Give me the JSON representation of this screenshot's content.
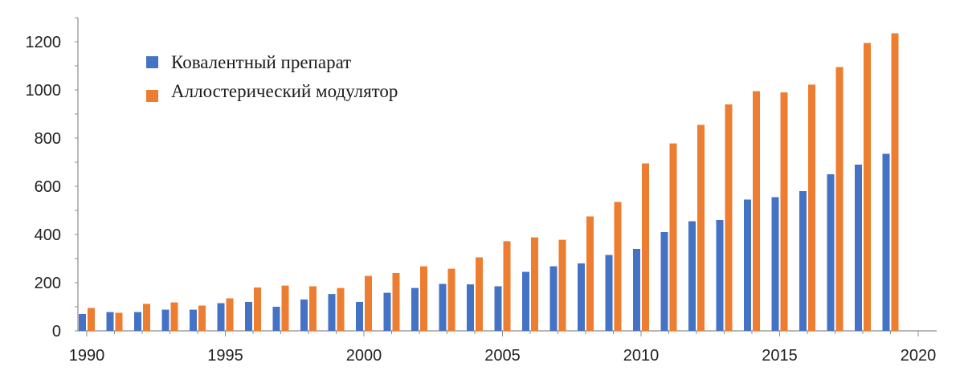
{
  "chart_data": {
    "type": "bar",
    "title": "",
    "xlabel": "",
    "ylabel": "",
    "x": [
      1990,
      1991,
      1992,
      1993,
      1994,
      1995,
      1996,
      1997,
      1998,
      1999,
      2000,
      2001,
      2002,
      2003,
      2004,
      2005,
      2006,
      2007,
      2008,
      2009,
      2010,
      2011,
      2012,
      2013,
      2014,
      2015,
      2016,
      2017,
      2018,
      2019
    ],
    "series": [
      {
        "name": "Ковалентный препарат",
        "color": "#4472c4",
        "values": [
          70,
          78,
          78,
          88,
          88,
          115,
          120,
          100,
          130,
          153,
          120,
          158,
          178,
          195,
          193,
          185,
          245,
          268,
          280,
          315,
          340,
          410,
          455,
          460,
          545,
          555,
          580,
          650,
          690,
          735
        ]
      },
      {
        "name": "Аллостерический модулятор",
        "color": "#ed7d31",
        "values": [
          95,
          75,
          112,
          118,
          105,
          135,
          180,
          188,
          185,
          178,
          228,
          240,
          268,
          258,
          305,
          372,
          388,
          378,
          475,
          535,
          695,
          778,
          855,
          940,
          995,
          990,
          1022,
          1095,
          1195,
          1235
        ]
      }
    ],
    "x_ticks": [
      "1990",
      "1995",
      "2000",
      "2005",
      "2010",
      "2015",
      "2020"
    ],
    "y_ticks": [
      "0",
      "200",
      "400",
      "600",
      "800",
      "1000",
      "1200"
    ],
    "xlim": [
      1990,
      2020
    ],
    "ylim": [
      0,
      1300
    ],
    "grid": false,
    "legend_position": "top-left"
  }
}
